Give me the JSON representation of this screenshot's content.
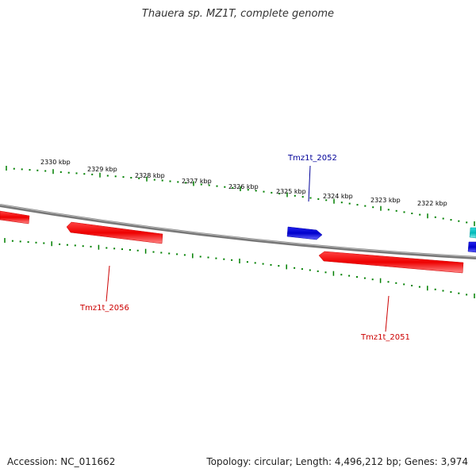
{
  "title": "Thauera sp. MZ1T, complete genome",
  "footer": {
    "accession": "Accession: NC_011662",
    "summary": "Topology: circular; Length: 4,496,212 bp; Genes: 3,974"
  },
  "scale_ticks": [
    "2330 kbp",
    "2329 kbp",
    "2328 kbp",
    "2327 kbp",
    "2326 kbp",
    "2325 kbp",
    "2324 kbp",
    "2323 kbp",
    "2322 kbp"
  ],
  "genes": [
    {
      "label": "",
      "strand": "minus",
      "color": "#ff0000"
    },
    {
      "label": "Tmz1t_2056",
      "strand": "minus",
      "color": "#ff0000"
    },
    {
      "label": "Tmz1t_2052",
      "strand": "plus",
      "color": "#0000dd"
    },
    {
      "label": "Tmz1t_2051",
      "strand": "minus",
      "color": "#ff0000"
    },
    {
      "label": "",
      "strand": "plus",
      "color": "#00c8c8"
    },
    {
      "label": "",
      "strand": "plus",
      "color": "#0000dd"
    }
  ],
  "colors": {
    "backbone": "#888888",
    "ticks": "#008000",
    "minus_label": "#cc0000",
    "plus_label": "#000099"
  }
}
